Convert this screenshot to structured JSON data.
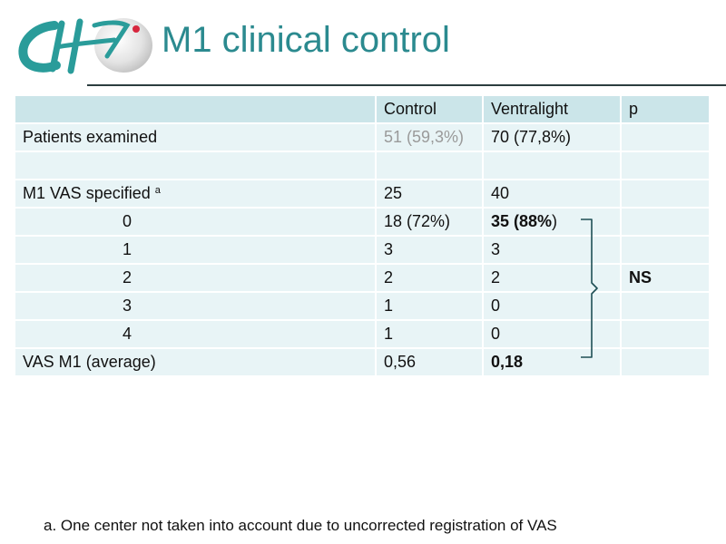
{
  "slide": {
    "title": "M1 clinical control",
    "logo_text": "CH",
    "footnote": "a. One center not taken into account due to uncorrected registration of VAS"
  },
  "table": {
    "headers": [
      "",
      "Control",
      "Ventralight",
      "p"
    ],
    "rows": [
      {
        "label": "Patients examined",
        "control": "51 (59,3%)",
        "ventralight": "70 (77,8%)",
        "p": ""
      },
      {
        "label": "",
        "control": "",
        "ventralight": "",
        "p": ""
      },
      {
        "label": "M1 VAS specified",
        "sup": "a",
        "control": "25",
        "ventralight": "40",
        "p": ""
      },
      {
        "label": "0",
        "control": "18 (72%)",
        "ventralight_bold": "35 (88%",
        "ventralight_tail": ")",
        "p": ""
      },
      {
        "label": "1",
        "control": "3",
        "ventralight": "3",
        "p": ""
      },
      {
        "label": "2",
        "control": "2",
        "ventralight": "2",
        "p": "NS"
      },
      {
        "label": "3",
        "control": "1",
        "ventralight": "0",
        "p": ""
      },
      {
        "label": "4",
        "control": "1",
        "ventralight": "0",
        "p": ""
      },
      {
        "label": "VAS M1 (average)",
        "control": "0,56",
        "ventralight": "0,18",
        "p": ""
      }
    ]
  },
  "colors": {
    "title": "#2b8a8f",
    "header_fill": "#cbe5e9",
    "row_fill": "#e8f4f6",
    "brace": "#1f4f55",
    "logo_red": "#d7263d"
  }
}
